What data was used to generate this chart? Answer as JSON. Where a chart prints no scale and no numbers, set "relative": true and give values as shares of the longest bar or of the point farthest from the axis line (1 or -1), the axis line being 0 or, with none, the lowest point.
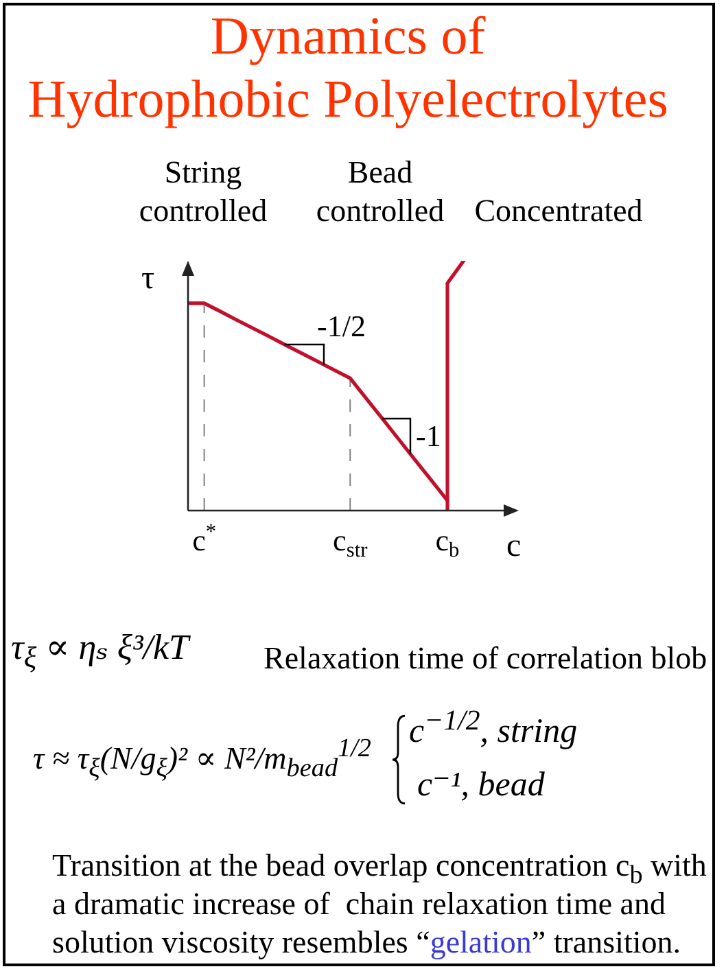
{
  "chart_data": {
    "type": "line",
    "title": "Dynamics of\nHydrophobic Polyelectrolytes",
    "xlabel": "c",
    "ylabel": "τ",
    "relative": true,
    "categories": [
      null,
      "c$^{*}$",
      null,
      null,
      null,
      null,
      null,
      null,
      null,
      null,
      "c$_{str}$",
      null,
      null,
      null,
      null,
      null,
      "c$_{b}$",
      null
    ],
    "series": [
      {
        "color": "#c0102c",
        "values": [
          0.83,
          0.83,
          0.797,
          0.763,
          0.73,
          0.697,
          0.663,
          0.63,
          0.597,
          0.563,
          0.53,
          0.448,
          0.367,
          0.285,
          0.203,
          0.122,
          0.04,
          null
        ]
      },
      {
        "color": "#c0102c",
        "values": [
          null,
          null,
          null,
          null,
          null,
          null,
          null,
          null,
          null,
          null,
          null,
          null,
          null,
          null,
          null,
          null,
          0.91,
          1
        ]
      }
    ],
    "ref_lines": [
      {
        "axis": "x",
        "value": "c$^{*}$",
        "line_style": "dashed",
        "color": "#808080"
      },
      {
        "axis": "x",
        "value": "c$_{str}$",
        "line_style": "dashed",
        "color": "#808080"
      },
      {
        "axis": "x",
        "value": "c$_{b}$",
        "line_style": "solid",
        "color": "#c0102c"
      }
    ],
    "annotations": [
      "-1/2",
      "-1",
      "String controlled",
      "Bead controlled",
      "Concentrated",
      "τ$_{ξ}$ ∝ ηₛ ξ³/kT",
      "Relaxation time of correlation blob",
      "τ ≈ τ$_{ξ}$(N/g$_{ξ}$)² ∝ N²/m$_{bead}$$^{1/2}$",
      "c$^{−1/2}$, string",
      "c⁻¹, bead",
      "Transition at the bead overlap concentration c$_{b}$ with a dramatic increase of  chain relaxation time and",
      "solution viscosity resembles “",
      "gelation",
      "” transition."
    ]
  }
}
